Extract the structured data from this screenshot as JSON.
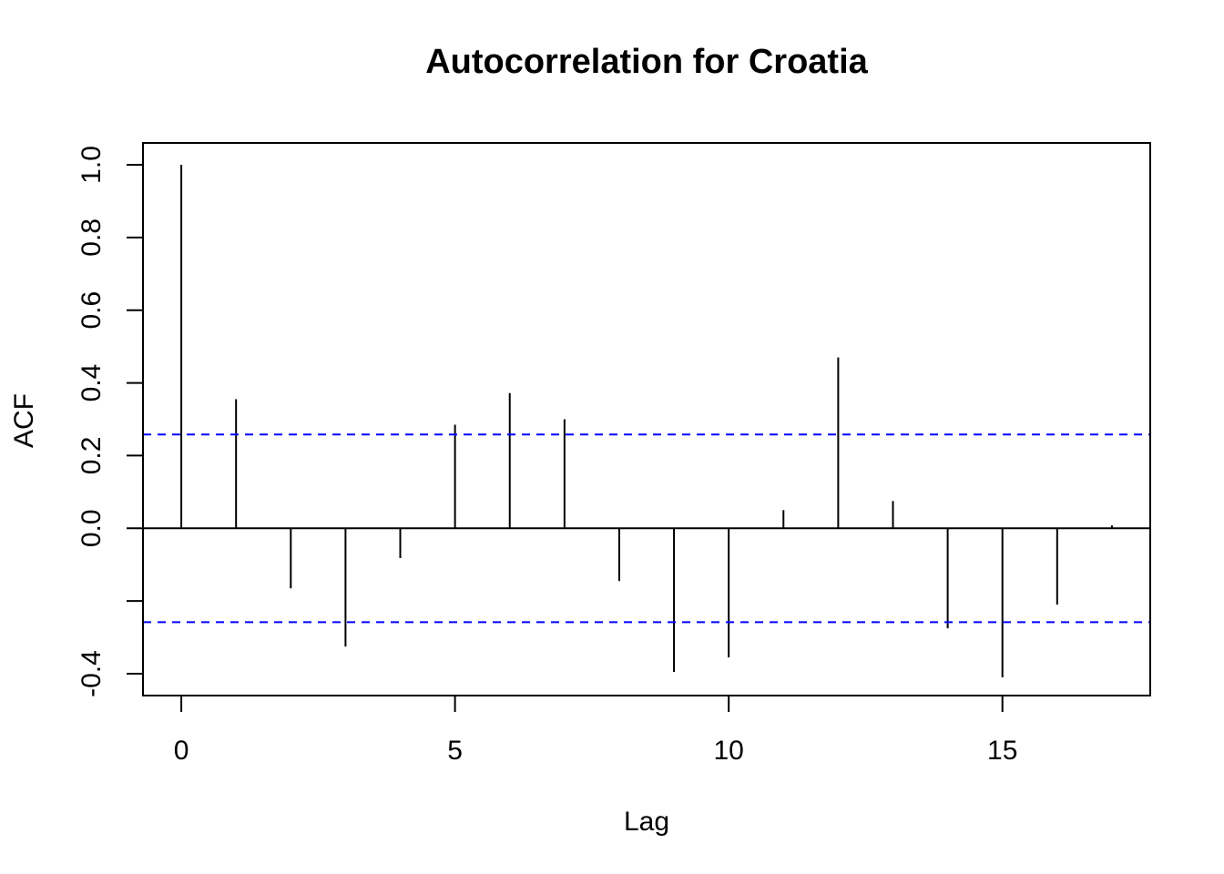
{
  "chart_data": {
    "type": "bar",
    "title": "Autocorrelation for Croatia",
    "xlabel": "Lag",
    "ylabel": "ACF",
    "x": [
      0,
      1,
      2,
      3,
      4,
      5,
      6,
      7,
      8,
      9,
      10,
      11,
      12,
      13,
      14,
      15,
      16,
      17
    ],
    "values": [
      1.0,
      0.355,
      -0.165,
      -0.325,
      -0.082,
      0.285,
      0.372,
      0.3,
      -0.145,
      -0.395,
      -0.355,
      0.05,
      0.47,
      0.075,
      -0.275,
      -0.41,
      -0.21,
      0.008
    ],
    "confidence_bound": 0.258,
    "xlim": [
      -0.7,
      17.7
    ],
    "ylim": [
      -0.46,
      1.06
    ],
    "xticks": [
      0,
      5,
      10,
      15
    ],
    "yticks": [
      -0.4,
      -0.2,
      0.0,
      0.2,
      0.4,
      0.6,
      0.8,
      1.0
    ],
    "ytick_labels": [
      "-0.4",
      "",
      "0.0",
      "0.2",
      "0.4",
      "0.6",
      "0.8",
      "1.0"
    ],
    "grid": false,
    "colors": {
      "bars": "#000000",
      "confidence_lines": "#0000ff",
      "axes": "#000000"
    }
  }
}
